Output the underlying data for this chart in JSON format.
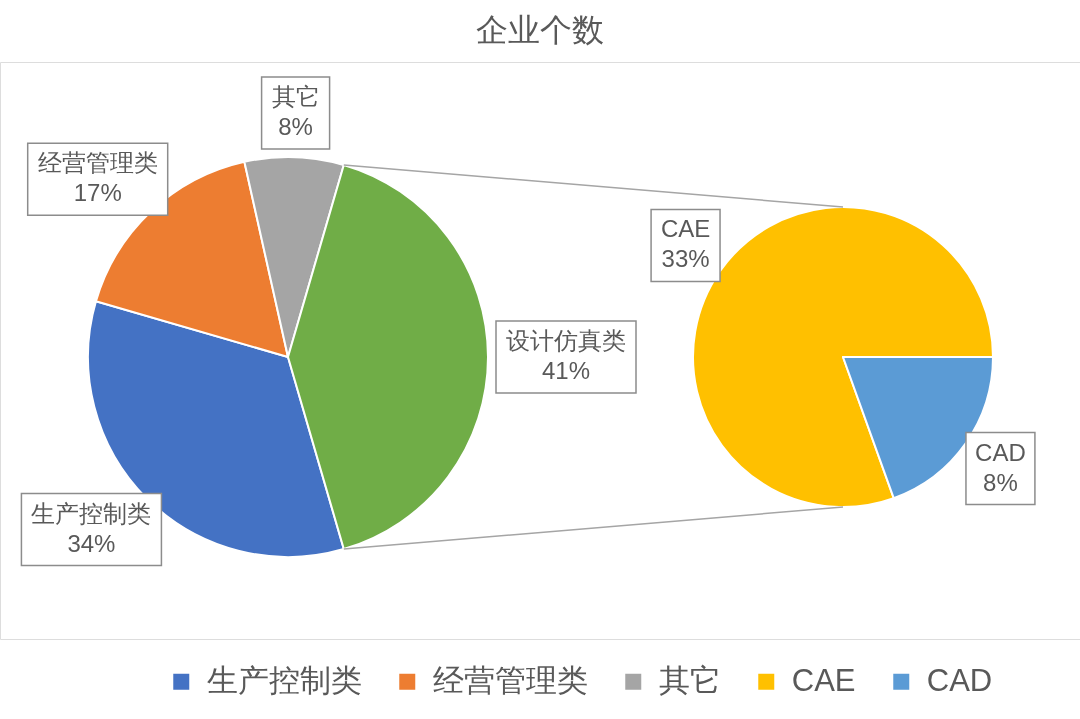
{
  "chart_data": [
    {
      "type": "pie",
      "title": "企业个数",
      "categories": [
        "生产控制类",
        "经营管理类",
        "其它",
        "设计仿真类"
      ],
      "values": [
        34,
        17,
        8,
        41
      ],
      "colors": [
        "#4472c4",
        "#ed7d31",
        "#a5a5a5",
        "#70ad47"
      ],
      "value_labels": [
        "34%",
        "17%",
        "8%",
        "41%"
      ],
      "legend": "bottom"
    },
    {
      "type": "pie",
      "categories": [
        "CAE",
        "CAD"
      ],
      "values": [
        33,
        8
      ],
      "colors": [
        "#ffc000",
        "#5b9bd5"
      ],
      "value_labels": [
        "33%",
        "8%"
      ],
      "legend": "bottom"
    }
  ]
}
